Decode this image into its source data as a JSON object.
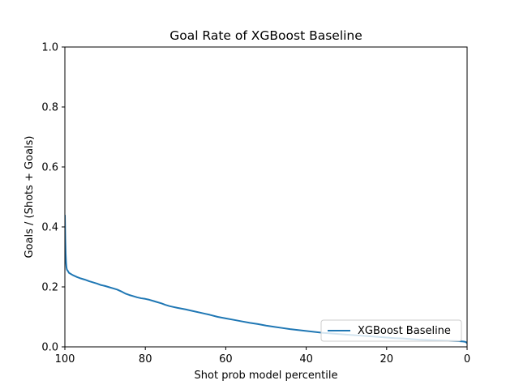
{
  "chart_data": {
    "type": "line",
    "title": "Goal Rate of XGBoost Baseline",
    "xlabel": "Shot prob model percentile",
    "ylabel": "Goals / (Shots + Goals)",
    "xlim": [
      100,
      0
    ],
    "ylim": [
      0.0,
      1.0
    ],
    "xticks": [
      100,
      80,
      60,
      40,
      20,
      0
    ],
    "yticks": [
      0.0,
      0.2,
      0.4,
      0.6,
      0.8,
      1.0
    ],
    "xtick_labels": [
      "100",
      "80",
      "60",
      "40",
      "20",
      "0"
    ],
    "ytick_labels": [
      "0.0",
      "0.2",
      "0.4",
      "0.6",
      "0.8",
      "1.0"
    ],
    "grid": false,
    "legend_position": "lower-right",
    "line_color": "#1f77b4",
    "series": [
      {
        "name": "XGBoost Baseline",
        "x": [
          100,
          99.9,
          99.8,
          99.7,
          99.6,
          99.5,
          99.2,
          99,
          98.5,
          98,
          97,
          96,
          95,
          94,
          93,
          92,
          91,
          90,
          89,
          88,
          87,
          86,
          85,
          84,
          83,
          82,
          81,
          80,
          79,
          78,
          77,
          76,
          75,
          74,
          73,
          72,
          70,
          68,
          66,
          64,
          62,
          60,
          58,
          56,
          54,
          52,
          50,
          48,
          46,
          44,
          42,
          40,
          38,
          36,
          34,
          32,
          30,
          28,
          26,
          24,
          22,
          20,
          18,
          16,
          14,
          12,
          10,
          8,
          6,
          4,
          2,
          1,
          0.5,
          0.2,
          0
        ],
        "y": [
          0.44,
          0.36,
          0.31,
          0.28,
          0.265,
          0.258,
          0.252,
          0.247,
          0.243,
          0.239,
          0.233,
          0.228,
          0.224,
          0.219,
          0.215,
          0.211,
          0.206,
          0.203,
          0.199,
          0.195,
          0.191,
          0.185,
          0.178,
          0.173,
          0.169,
          0.165,
          0.162,
          0.16,
          0.157,
          0.153,
          0.149,
          0.145,
          0.14,
          0.136,
          0.133,
          0.13,
          0.125,
          0.119,
          0.113,
          0.107,
          0.1,
          0.095,
          0.09,
          0.085,
          0.08,
          0.076,
          0.071,
          0.067,
          0.063,
          0.059,
          0.056,
          0.053,
          0.05,
          0.047,
          0.045,
          0.043,
          0.041,
          0.039,
          0.037,
          0.035,
          0.033,
          0.031,
          0.029,
          0.028,
          0.026,
          0.024,
          0.023,
          0.022,
          0.021,
          0.02,
          0.019,
          0.018,
          0.017,
          0.015,
          0.012
        ]
      }
    ]
  }
}
